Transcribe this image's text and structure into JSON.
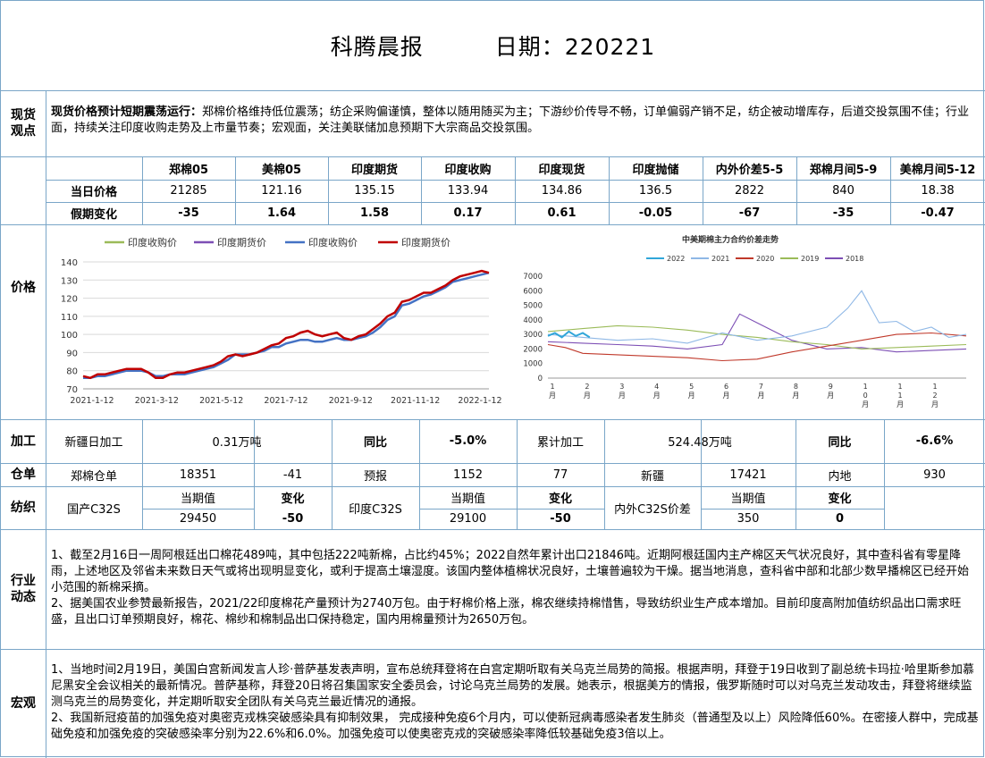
{
  "header": {
    "title": "科腾晨报",
    "date_label": "日期：220221"
  },
  "spot": {
    "label": "现货\n观点",
    "lead": "现货价格预计短期震荡运行：",
    "text": "郑棉价格维持低位震荡；纺企采购偏谨慎，整体以随用随买为主；下游纱价传导不畅，订单偏弱产销不足，纺企被动增库存，后道交投氛围不佳；行业面，持续关注印度收购走势及上市量节奏；宏观面，关注美联储加息预期下大宗商品交投氛围。"
  },
  "price_table": {
    "label": "价格",
    "headers": [
      "郑棉05",
      "美棉05",
      "印度期货",
      "印度收购",
      "印度现货",
      "印度抛储",
      "内外价差5-5",
      "郑棉月间5-9",
      "美棉月间5-12"
    ],
    "row1_label": "当日价格",
    "row1": [
      "21285",
      "121.16",
      "135.15",
      "133.94",
      "134.86",
      "136.5",
      "2822",
      "840",
      "18.38"
    ],
    "row2_label": "假期变化",
    "row2": [
      "-35",
      "1.64",
      "1.58",
      "0.17",
      "0.61",
      "-0.05",
      "-67",
      "-35",
      "-0.47"
    ]
  },
  "chart_data": [
    {
      "type": "line",
      "legend": [
        "印度收购价",
        "印度期货价",
        "印度收购价",
        "印度期货价"
      ],
      "x_ticks": [
        "2021-1-12",
        "2021-3-12",
        "2021-5-12",
        "2021-7-12",
        "2021-9-12",
        "2021-11-12",
        "2022-1-12"
      ],
      "ylim": [
        70,
        140
      ],
      "y_ticks": [
        70,
        80,
        90,
        100,
        110,
        120,
        130,
        140
      ],
      "series": [
        {
          "name": "印度收购价",
          "color": "#4472c4",
          "x": [
            0,
            1,
            2,
            3,
            4,
            5,
            6,
            7,
            8,
            9,
            10,
            11,
            12,
            13,
            14,
            15,
            16,
            17,
            18,
            19,
            20,
            21,
            22,
            23,
            24,
            25,
            26,
            27,
            28,
            29,
            30,
            31,
            32,
            33,
            34,
            35,
            36,
            37,
            38,
            39,
            40,
            41,
            42,
            43,
            44,
            45,
            46,
            47,
            48,
            49,
            50,
            51,
            52,
            53,
            54,
            55,
            56
          ],
          "y": [
            76,
            76,
            77,
            77,
            78,
            79,
            80,
            80,
            80,
            79,
            77,
            77,
            78,
            78,
            78,
            79,
            80,
            81,
            82,
            84,
            86,
            89,
            89,
            89,
            90,
            91,
            93,
            93,
            95,
            96,
            97,
            97,
            96,
            96,
            97,
            98,
            97,
            97,
            98,
            99,
            101,
            104,
            108,
            110,
            116,
            117,
            119,
            121,
            122,
            124,
            126,
            129,
            130,
            131,
            132,
            133,
            134
          ]
        },
        {
          "name": "印度期货价",
          "color": "#c00000",
          "x": [
            0,
            1,
            2,
            3,
            4,
            5,
            6,
            7,
            8,
            9,
            10,
            11,
            12,
            13,
            14,
            15,
            16,
            17,
            18,
            19,
            20,
            21,
            22,
            23,
            24,
            25,
            26,
            27,
            28,
            29,
            30,
            31,
            32,
            33,
            34,
            35,
            36,
            37,
            38,
            39,
            40,
            41,
            42,
            43,
            44,
            45,
            46,
            47,
            48,
            49,
            50,
            51,
            52,
            53,
            54,
            55,
            56
          ],
          "y": [
            77,
            76,
            78,
            78,
            79,
            80,
            81,
            81,
            81,
            79,
            76,
            76,
            78,
            79,
            79,
            80,
            81,
            82,
            83,
            85,
            88,
            89,
            88,
            89,
            90,
            92,
            94,
            95,
            98,
            99,
            101,
            102,
            100,
            99,
            100,
            101,
            98,
            97,
            99,
            100,
            103,
            106,
            110,
            112,
            118,
            119,
            121,
            123,
            123,
            125,
            127,
            130,
            132,
            133,
            134,
            135,
            134
          ]
        }
      ]
    },
    {
      "type": "line",
      "title": "中美期棉主力合约价差走势",
      "legend": [
        "2022",
        "2021",
        "2020",
        "2019",
        "2018"
      ],
      "ylim": [
        0,
        7000
      ],
      "y_ticks": [
        0,
        1000,
        2000,
        3000,
        4000,
        5000,
        6000,
        7000
      ],
      "x_ticks": [
        "1\n月",
        "2\n月",
        "3\n月",
        "4\n月",
        "5\n月",
        "6\n月",
        "7\n月",
        "8\n月",
        "9\n月",
        "1\n0\n月",
        "1\n1\n月",
        "1\n2\n月"
      ],
      "series": [
        {
          "name": "2022",
          "color": "#31a6d9",
          "x": [
            0,
            0.2,
            0.4,
            0.6,
            0.8,
            1.0,
            1.2
          ],
          "y": [
            2900,
            3100,
            2800,
            3200,
            2900,
            3100,
            2800
          ]
        },
        {
          "name": "2021",
          "color": "#8fb8e6",
          "x": [
            0,
            1,
            2,
            3,
            4,
            5,
            6,
            7,
            8,
            8.6,
            9,
            9.5,
            10,
            10.5,
            11,
            11.5,
            12
          ],
          "y": [
            3000,
            2800,
            2600,
            2700,
            2400,
            3100,
            2600,
            2900,
            3500,
            4800,
            6000,
            3800,
            3900,
            3200,
            3500,
            2800,
            3000
          ]
        },
        {
          "name": "2020",
          "color": "#c0392b",
          "x": [
            0,
            0.5,
            1,
            2,
            3,
            4,
            5,
            6,
            7,
            8,
            9,
            10,
            11,
            12
          ],
          "y": [
            2300,
            2100,
            1700,
            1600,
            1500,
            1400,
            1200,
            1300,
            1800,
            2200,
            2600,
            3000,
            3100,
            2900
          ]
        },
        {
          "name": "2019",
          "color": "#9bbb59",
          "x": [
            0,
            1,
            2,
            3,
            4,
            5,
            6,
            7,
            8,
            9,
            10,
            11,
            12
          ],
          "y": [
            3200,
            3400,
            3600,
            3500,
            3300,
            3000,
            2800,
            2500,
            2300,
            2000,
            2100,
            2200,
            2300
          ]
        },
        {
          "name": "2018",
          "color": "#7d4fb5",
          "x": [
            0,
            1,
            2,
            3,
            4,
            5,
            5.5,
            6,
            7,
            8,
            9,
            10,
            11,
            12
          ],
          "y": [
            2500,
            2400,
            2300,
            2200,
            2000,
            2300,
            4400,
            3800,
            2600,
            2000,
            2100,
            1800,
            1900,
            2000
          ]
        }
      ]
    }
  ],
  "processing": {
    "label": "加工",
    "c1": "新疆日加工",
    "c2": "0.31万吨",
    "c3": "同比",
    "c4": "-5.0%",
    "c5": "累计加工",
    "c6": "524.48万吨",
    "c7": "同比",
    "c8": "-6.6%"
  },
  "warehouse": {
    "label": "仓单",
    "cells": [
      "郑棉仓单",
      "18351",
      "-41",
      "预报",
      "1152",
      "77",
      "新疆",
      "17421",
      "内地",
      "930"
    ]
  },
  "textile": {
    "label": "纺织",
    "g1_name": "国产C32S",
    "g1_h1": "当期值",
    "g1_h2": "变化",
    "g1_v1": "29450",
    "g1_v2": "-50",
    "g2_name": "印度C32S",
    "g2_h1": "当期值",
    "g2_h2": "变化",
    "g2_v1": "29100",
    "g2_v2": "-50",
    "g3_name": "内外C32S价差",
    "g3_h1": "当期值",
    "g3_h2": "变化",
    "g3_v1": "350",
    "g3_v2": "0"
  },
  "industry": {
    "label": "行业\n动态",
    "p1": "1、截至2月16日一周阿根廷出口棉花489吨，其中包括222吨新棉，占比约45%；2022自然年累计出口21846吨。近期阿根廷国内主产棉区天气状况良好，其中查科省有零星降雨，上述地区及邻省未来数日天气或将出现明显变化，或利于提高土壤湿度。该国内整体植棉状况良好，土壤普遍较为干燥。据当地消息，查科省中部和北部少数早播棉区已经开始小范围的新棉采摘。",
    "p2": "2、据美国农业参赞最新报告，2021/22印度棉花产量预计为2740万包。由于籽棉价格上涨，棉农继续持棉惜售，导致纺织业生产成本增加。目前印度高附加值纺织品出口需求旺盛，且出口订单预期良好，棉花、棉纱和棉制品出口保持稳定，国内用棉量预计为2650万包。"
  },
  "macro": {
    "label": "宏观",
    "p1": "1、当地时间2月19日，美国白宫新闻发言人珍·普萨基发表声明，宣布总统拜登将在白宫定期听取有关乌克兰局势的简报。根据声明，拜登于19日收到了副总统卡玛拉·哈里斯参加慕尼黑安全会议相关的最新情况。普萨基称，拜登20日将召集国家安全委员会，讨论乌克兰局势的发展。她表示，根据美方的情报，俄罗斯随时可以对乌克兰发动攻击，拜登将继续监测乌克兰的局势变化，并定期听取安全团队有关乌克兰最近情况的通报。",
    "p2": "2、我国新冠疫苗的加强免疫对奥密克戎株突破感染具有抑制效果， 完成接种免疫6个月内，可以使新冠病毒感染者发生肺炎（普通型及以上）风险降低60%。在密接人群中，完成基础免疫和加强免疫的突破感染率分别为22.6%和6.0%。加强免疫可以使奥密克戎的突破感染率降低较基础免疫3倍以上。"
  }
}
